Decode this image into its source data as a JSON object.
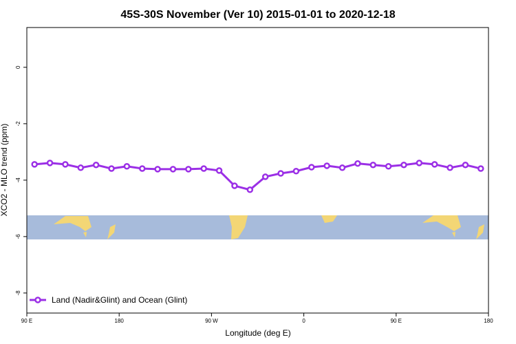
{
  "chart_data": {
    "type": "line",
    "title": "45S-30S November (Ver 10)   2015-01-01 to 2020-12-18",
    "xlabel": "Longitude (deg E)",
    "ylabel": "XCO2 - MLO trend (ppm)",
    "x": [
      97.5,
      112.5,
      127.5,
      142.5,
      157.5,
      172.5,
      187.5,
      202.5,
      217.5,
      232.5,
      247.5,
      262.5,
      277.5,
      292.5,
      307.5,
      322.5,
      337.5,
      352.5,
      367.5,
      382.5,
      397.5,
      412.5,
      427.5,
      442.5,
      457.5,
      472.5,
      487.5,
      502.5,
      517.5,
      532.5
    ],
    "series": [
      {
        "name": "Land (Nadir&Glint) and Ocean (Glint)",
        "color": "#9b2fe6",
        "values": [
          -3.44,
          -3.39,
          -3.44,
          -3.56,
          -3.46,
          -3.59,
          -3.51,
          -3.59,
          -3.61,
          -3.61,
          -3.61,
          -3.59,
          -3.66,
          -4.2,
          -4.34,
          -3.88,
          -3.76,
          -3.68,
          -3.54,
          -3.49,
          -3.56,
          -3.41,
          -3.46,
          -3.51,
          -3.46,
          -3.39,
          -3.44,
          -3.56,
          -3.46,
          -3.59
        ]
      }
    ],
    "xlim": [
      90,
      540
    ],
    "xticks": [
      {
        "value": 90,
        "label": "90 E"
      },
      {
        "value": 180,
        "label": "180"
      },
      {
        "value": 270,
        "label": "90 W"
      },
      {
        "value": 360,
        "label": "0"
      },
      {
        "value": 450,
        "label": "90 E"
      },
      {
        "value": 540,
        "label": "180"
      }
    ],
    "ylim": [
      -8.71,
      1.41
    ],
    "yticks": [
      0,
      -2,
      -4,
      -6,
      -8
    ],
    "legend": "bottom-left"
  }
}
